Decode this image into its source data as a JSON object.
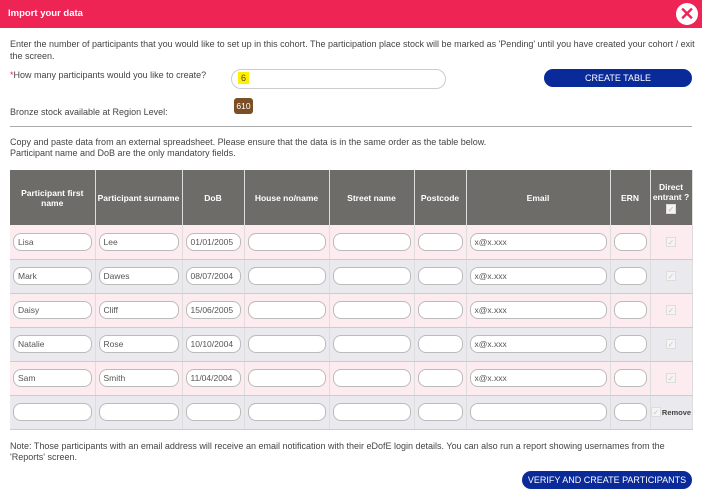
{
  "header": {
    "title": "Import your data",
    "close_icon": "close-circle-icon"
  },
  "intro": "Enter the number of participants that you would like to set up in this cohort. The participation place stock will be marked as 'Pending' until you have created your cohort / exit the screen.",
  "count": {
    "required_mark": "*",
    "label": "How many participants would you like to create?",
    "value": "6",
    "button": "CREATE TABLE"
  },
  "stock": {
    "label": "Bronze stock available at Region Level:",
    "value": "610"
  },
  "paste_instructions": [
    "Copy and paste data from an external spreadsheet. Please ensure that the data is in the same order as the table below.",
    "Participant name and DoB are the only mandatory fields."
  ],
  "table": {
    "columns": [
      "Participant first name",
      "Participant surname",
      "DoB",
      "House no/name",
      "Street name",
      "Postcode",
      "Email",
      "ERN",
      "Direct entrant ?"
    ],
    "rows": [
      [
        "Lisa",
        "Lee",
        "01/01/2005",
        "",
        "",
        "",
        "x@x.xxx",
        ""
      ],
      [
        "Mark",
        "Dawes",
        "08/07/2004",
        "",
        "",
        "",
        "x@x.xxx",
        ""
      ],
      [
        "Daisy",
        "Cliff",
        "15/06/2005",
        "",
        "",
        "",
        "x@x.xxx",
        ""
      ],
      [
        "Natalie",
        "Rose",
        "10/10/2004",
        "",
        "",
        "",
        "x@x.xxx",
        ""
      ],
      [
        "Sam",
        "Smith",
        "11/04/2004",
        "",
        "",
        "",
        "x@x.xxx",
        ""
      ],
      [
        "",
        "",
        "",
        "",
        "",
        "",
        "",
        ""
      ]
    ],
    "remove_label": "Remove"
  },
  "note": "Note: Those participants with an email address will receive an email notification with their eDofE login details. You can also run a report showing usernames from the 'Reports' screen.",
  "submit": "VERIFY AND CREATE PARTICIPANTS",
  "colors": {
    "header": "#ee2455",
    "button": "#0a2a9a",
    "stock_badge": "#7b4f25",
    "table_header": "#6e6c69"
  }
}
